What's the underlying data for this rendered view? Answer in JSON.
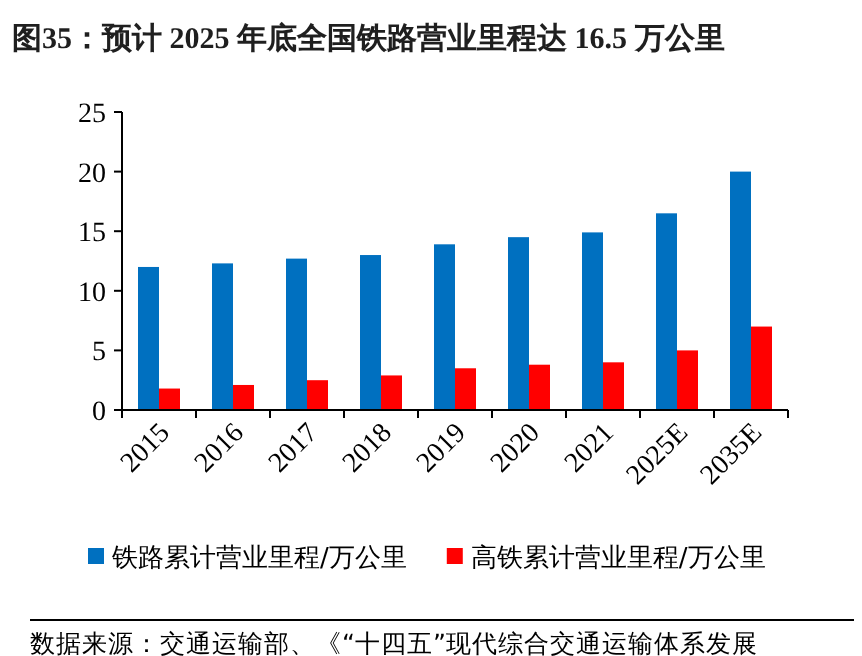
{
  "chart_data": {
    "type": "bar",
    "title": "图35：预计 2025 年底全国铁路营业里程达 16.5 万公里",
    "categories": [
      "2015",
      "2016",
      "2017",
      "2018",
      "2019",
      "2020",
      "2021",
      "2025E",
      "2035E"
    ],
    "series": [
      {
        "name": "铁路累计营业里程/万公里",
        "color": "#0070c0",
        "values": [
          12.0,
          12.3,
          12.7,
          13.0,
          13.9,
          14.5,
          14.9,
          16.5,
          20.0
        ]
      },
      {
        "name": "高铁累计营业里程/万公里",
        "color": "#ff0000",
        "values": [
          1.8,
          2.1,
          2.5,
          2.9,
          3.5,
          3.8,
          4.0,
          5.0,
          7.0
        ]
      }
    ],
    "ylim": [
      0,
      25
    ],
    "yticks": [
      0,
      5,
      10,
      15,
      20,
      25
    ],
    "grid": false,
    "legend": "bottom",
    "annotations": [
      "数据来源：交通运输部、《“十四五”现代综合交通运输体系发展"
    ]
  }
}
